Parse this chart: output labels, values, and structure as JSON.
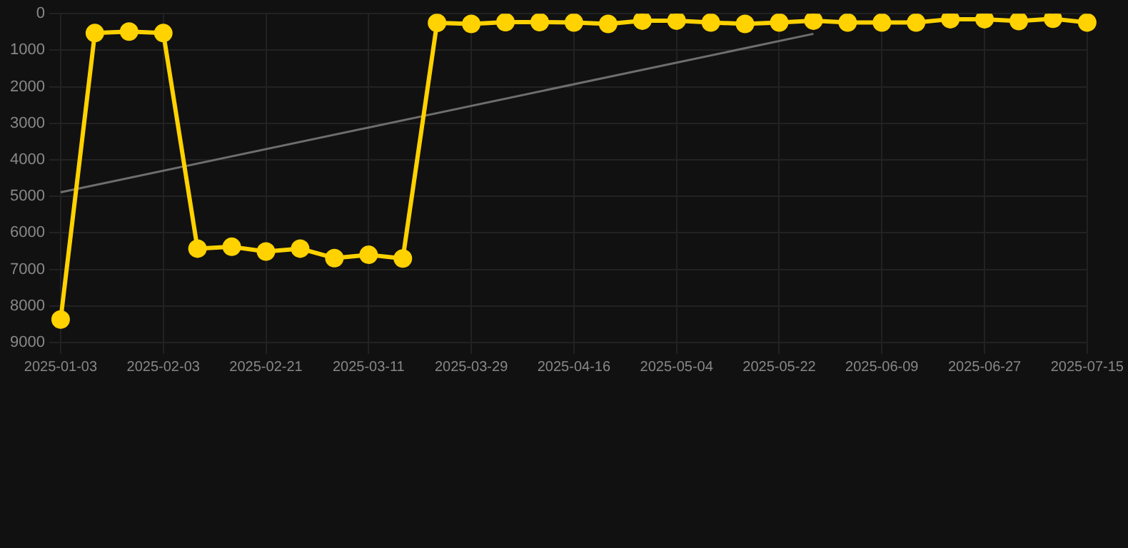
{
  "chart_data": {
    "type": "line",
    "categories": [
      "2025-01-03",
      null,
      null,
      "2025-02-03",
      null,
      null,
      "2025-02-21",
      null,
      null,
      "2025-03-11",
      null,
      null,
      "2025-03-29",
      null,
      null,
      "2025-04-16",
      null,
      null,
      "2025-05-04",
      null,
      null,
      "2025-05-22",
      null,
      null,
      "2025-06-09",
      null,
      null,
      "2025-06-27",
      null,
      null,
      "2025-07-15"
    ],
    "series": [
      {
        "color": "#ffd200",
        "marker": "circle",
        "values": [
          8370,
          530,
          490,
          530,
          6430,
          6380,
          6510,
          6430,
          6690,
          6600,
          6700,
          250,
          280,
          230,
          230,
          240,
          280,
          190,
          190,
          240,
          280,
          240,
          190,
          240,
          240,
          240,
          150,
          150,
          200,
          140,
          240
        ]
      },
      {
        "type": "line",
        "color": "#6e6e6e",
        "marker": "none",
        "values": [
          4890,
          null,
          null,
          null,
          null,
          null,
          null,
          null,
          null,
          null,
          null,
          null,
          null,
          null,
          null,
          null,
          null,
          null,
          null,
          null,
          null,
          null,
          550,
          null,
          null,
          null,
          null,
          null,
          null,
          null,
          null
        ]
      }
    ],
    "ylim": [
      9000,
      0
    ],
    "yticks": [
      0,
      1000,
      2000,
      3000,
      4000,
      5000,
      6000,
      7000,
      8000,
      9000
    ],
    "grid": true,
    "legend": false
  }
}
